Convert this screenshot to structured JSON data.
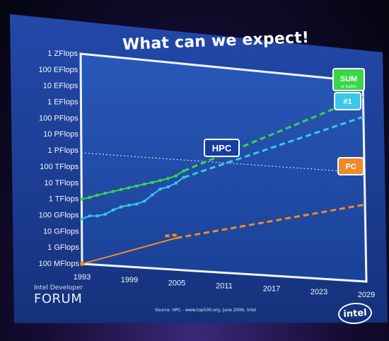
{
  "slide": {
    "title": "What can we expect!",
    "brand_small": "Intel Developer",
    "brand_big": "FORUM",
    "source": "Source: HPC - www.top500.org, June 2006,  Intel",
    "logo": "intel"
  },
  "colors": {
    "background": "#1f3d97",
    "plot_border": "#eef4ff",
    "sum": "#39d647",
    "top1": "#39c7ea",
    "pc": "#ee8a2c",
    "hpc_box": "#163d9f",
    "guide": "#f2f5ff"
  },
  "chart_data": {
    "type": "line",
    "title": "What can we expect!",
    "xlabel": "",
    "ylabel": "",
    "x_ticks": [
      "1993",
      "1999",
      "2005",
      "2011",
      "2017",
      "2023",
      "2029"
    ],
    "y_ticks": [
      "100 MFlops",
      "1 GFlops",
      "10 GFlops",
      "100 GFlops",
      "1 TFlops",
      "10 TFlops",
      "100 TFlops",
      "1 PFlops",
      "10 PFlops",
      "100 PFlops",
      "1 EFlops",
      "10 EFlops",
      "100 EFlops",
      "1 ZFlops"
    ],
    "xlim": [
      1993,
      2029
    ],
    "ylim": [
      "100 MFlops",
      "1 ZFlops"
    ],
    "log_scale_y": true,
    "series": [
      {
        "name": "SUM",
        "secondary_label": "of Top500",
        "measured": [
          {
            "x": 1993,
            "y": "1 TFlops"
          },
          {
            "x": 1994,
            "y": "1.4 TFlops"
          },
          {
            "x": 1995,
            "y": "2.1 TFlops"
          },
          {
            "x": 1996,
            "y": "3 TFlops"
          },
          {
            "x": 1997,
            "y": "4.2 TFlops"
          },
          {
            "x": 1998,
            "y": "6 TFlops"
          },
          {
            "x": 1999,
            "y": "8.5 TFlops"
          },
          {
            "x": 2000,
            "y": "12 TFlops"
          },
          {
            "x": 2001,
            "y": "17 TFlops"
          },
          {
            "x": 2002,
            "y": "24 TFlops"
          },
          {
            "x": 2003,
            "y": "34 TFlops"
          },
          {
            "x": 2004,
            "y": "50 TFlops"
          },
          {
            "x": 2005,
            "y": "80 TFlops"
          },
          {
            "x": 2006,
            "y": "180 TFlops"
          }
        ],
        "projection_end": {
          "x": 2029,
          "y": "100 EFlops"
        }
      },
      {
        "name": "#1",
        "measured": [
          {
            "x": 1993,
            "y": "60 GFlops"
          },
          {
            "x": 1994,
            "y": "100 GFlops"
          },
          {
            "x": 1995,
            "y": "110 GFlops"
          },
          {
            "x": 1996,
            "y": "150 GFlops"
          },
          {
            "x": 1997,
            "y": "300 GFlops"
          },
          {
            "x": 1998,
            "y": "500 GFlops"
          },
          {
            "x": 1999,
            "y": "700 GFlops"
          },
          {
            "x": 2000,
            "y": "900 GFlops"
          },
          {
            "x": 2001,
            "y": "1.5 TFlops"
          },
          {
            "x": 2002,
            "y": "4 TFlops"
          },
          {
            "x": 2003,
            "y": "10 TFlops"
          },
          {
            "x": 2004,
            "y": "15 TFlops"
          },
          {
            "x": 2005,
            "y": "28 TFlops"
          },
          {
            "x": 2006,
            "y": "70 TFlops"
          }
        ],
        "projection_end": {
          "x": 2029,
          "y": "5 EFlops"
        }
      },
      {
        "name": "PC",
        "measured": [
          {
            "x": 1993,
            "y": "100 MFlops"
          },
          {
            "x": 2005,
            "y": "10 GFlops"
          }
        ],
        "projection_end": {
          "x": 2029,
          "y": "10 TFlops"
        }
      }
    ],
    "annotations": [
      {
        "text": "HPC"
      },
      {
        "text": "SUM"
      },
      {
        "text": "of Top500"
      },
      {
        "text": "#1"
      },
      {
        "text": "PC"
      }
    ],
    "reference_line": {
      "y": "1 PFlops",
      "style": "dotted"
    }
  }
}
